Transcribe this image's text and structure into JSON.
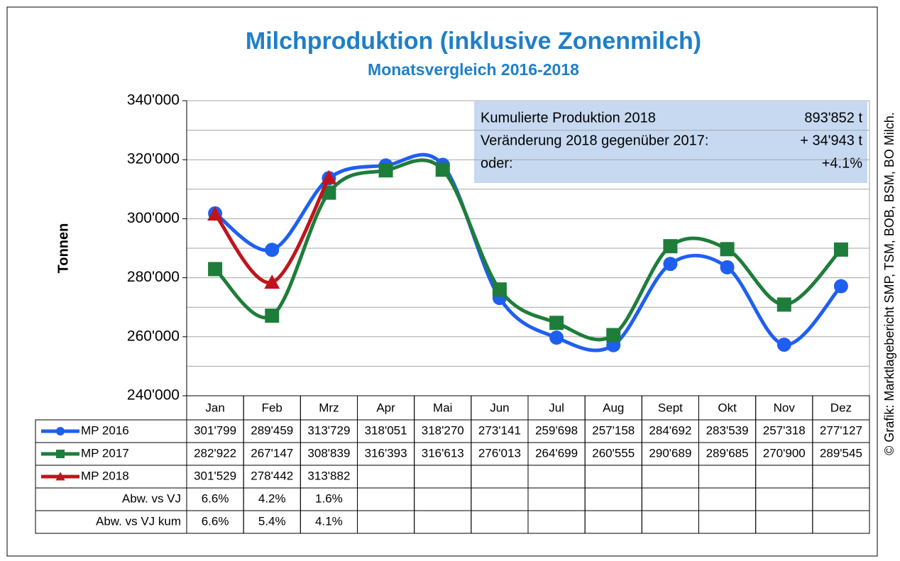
{
  "chart_data": {
    "type": "line",
    "title": "Milchproduktion (inklusive Zonenmilch)",
    "subtitle": "Monatsvergleich 2016-2018",
    "y_label": "Tonnen",
    "source": "© Grafik: Marktlagebericht SMP, TSM, BOB, BSM, BO Milch.",
    "categories": [
      "Jan",
      "Feb",
      "Mrz",
      "Apr",
      "Mai",
      "Jun",
      "Jul",
      "Aug",
      "Sept",
      "Okt",
      "Nov",
      "Dez"
    ],
    "ylim": [
      240000,
      340000
    ],
    "yticks": [
      {
        "value": 240000,
        "label": "240'000"
      },
      {
        "value": 260000,
        "label": "260'000"
      },
      {
        "value": 280000,
        "label": "280'000"
      },
      {
        "value": 300000,
        "label": "300'000"
      },
      {
        "value": 320000,
        "label": "320'000"
      },
      {
        "value": 340000,
        "label": "340'000"
      }
    ],
    "grid_lines": [
      240000,
      250000,
      260000,
      270000,
      280000,
      290000,
      300000,
      310000,
      320000,
      330000,
      340000
    ],
    "grid": true,
    "series": [
      {
        "name": "MP 2016",
        "color": "#1f5ff0",
        "marker": "circle",
        "values": [
          301799,
          289459,
          313729,
          318051,
          318270,
          273141,
          259698,
          257158,
          284692,
          283539,
          257318,
          277127
        ],
        "value_labels": [
          "301'799",
          "289'459",
          "313'729",
          "318'051",
          "318'270",
          "273'141",
          "259'698",
          "257'158",
          "284'692",
          "283'539",
          "257'318",
          "277'127"
        ]
      },
      {
        "name": "MP 2017",
        "color": "#1e7d3a",
        "marker": "square",
        "values": [
          282922,
          267147,
          308839,
          316393,
          316613,
          276013,
          264699,
          260555,
          290689,
          289685,
          270900,
          289545
        ],
        "value_labels": [
          "282'922",
          "267'147",
          "308'839",
          "316'393",
          "316'613",
          "276'013",
          "264'699",
          "260'555",
          "290'689",
          "289'685",
          "270'900",
          "289'545"
        ]
      },
      {
        "name": "MP 2018",
        "color": "#c0141c",
        "marker": "triangle",
        "values": [
          301529,
          278442,
          313882,
          null,
          null,
          null,
          null,
          null,
          null,
          null,
          null,
          null
        ],
        "value_labels": [
          "301'529",
          "278'442",
          "313'882",
          null,
          null,
          null,
          null,
          null,
          null,
          null,
          null,
          null
        ]
      }
    ],
    "table_rows": [
      {
        "name": "Abw. vs VJ",
        "values": [
          6.6,
          4.2,
          1.6
        ],
        "value_labels": [
          "6.6%",
          "4.2%",
          "1.6%"
        ]
      },
      {
        "name": "Abw. vs VJ kum",
        "values": [
          6.6,
          5.4,
          4.1
        ],
        "value_labels": [
          "6.6%",
          "5.4%",
          "4.1%"
        ]
      }
    ],
    "info_box": {
      "color": "#c6d9f1",
      "lines": [
        {
          "text": "Kumulierte Produktion 2018",
          "value": "893'852 t"
        },
        {
          "text": "Veränderung 2018 gegenüber 2017:",
          "value": "+ 34'943 t"
        },
        {
          "text": "oder:",
          "value": "+4.1%"
        }
      ]
    }
  }
}
